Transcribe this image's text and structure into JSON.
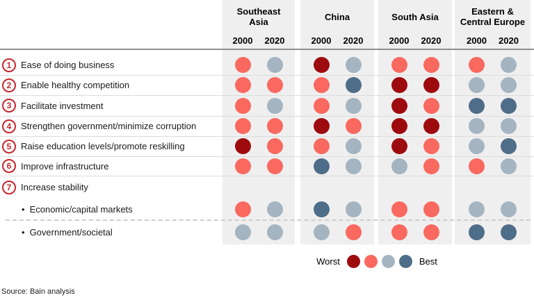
{
  "chart_data": {
    "type": "heatmap",
    "title": "",
    "columns": {
      "regions": [
        {
          "id": "southeast-asia",
          "label": "Southeast\nAsia"
        },
        {
          "id": "china",
          "label": "China"
        },
        {
          "id": "south-asia",
          "label": "South Asia"
        },
        {
          "id": "eastern-central-europe",
          "label": "Eastern &\nCentral Europe"
        }
      ],
      "years": [
        "2000",
        "2020"
      ]
    },
    "scale": {
      "order": [
        "worst",
        "poor",
        "fair",
        "best"
      ],
      "colors": {
        "worst": "#9e0b0f",
        "poor": "#f9695f",
        "fair": "#a5b4c1",
        "best": "#4e6d88"
      }
    },
    "rows": [
      {
        "num": "1",
        "label": "Ease of doing business",
        "values": [
          [
            "poor",
            "fair"
          ],
          [
            "worst",
            "fair"
          ],
          [
            "poor",
            "poor"
          ],
          [
            "poor",
            "fair"
          ]
        ]
      },
      {
        "num": "2",
        "label": "Enable healthy competition",
        "values": [
          [
            "poor",
            "poor"
          ],
          [
            "poor",
            "best"
          ],
          [
            "worst",
            "worst"
          ],
          [
            "fair",
            "fair"
          ]
        ]
      },
      {
        "num": "3",
        "label": "Facilitate investment",
        "values": [
          [
            "poor",
            "fair"
          ],
          [
            "poor",
            "fair"
          ],
          [
            "worst",
            "poor"
          ],
          [
            "best",
            "best"
          ]
        ]
      },
      {
        "num": "4",
        "label": "Strengthen government/minimize corruption",
        "values": [
          [
            "poor",
            "poor"
          ],
          [
            "worst",
            "poor"
          ],
          [
            "worst",
            "worst"
          ],
          [
            "fair",
            "fair"
          ]
        ]
      },
      {
        "num": "5",
        "label": "Raise education levels/promote reskilling",
        "values": [
          [
            "worst",
            "poor"
          ],
          [
            "poor",
            "fair"
          ],
          [
            "worst",
            "poor"
          ],
          [
            "fair",
            "best"
          ]
        ]
      },
      {
        "num": "6",
        "label": "Improve infrastructure",
        "values": [
          [
            "poor",
            "poor"
          ],
          [
            "best",
            "fair"
          ],
          [
            "fair",
            "poor"
          ],
          [
            "poor",
            "fair"
          ]
        ]
      },
      {
        "num": "7",
        "label": "Increase stability",
        "values": null
      },
      {
        "bullet": true,
        "label": "Economic/capital markets",
        "values": [
          [
            "poor",
            "fair"
          ],
          [
            "best",
            "fair"
          ],
          [
            "poor",
            "poor"
          ],
          [
            "fair",
            "fair"
          ]
        ]
      },
      {
        "bullet": true,
        "label": "Government/societal",
        "values": [
          [
            "fair",
            "fair"
          ],
          [
            "fair",
            "poor"
          ],
          [
            "poor",
            "poor"
          ],
          [
            "best",
            "best"
          ]
        ]
      }
    ]
  },
  "legend": {
    "worst_label": "Worst",
    "best_label": "Best"
  },
  "source": "Source: Bain analysis",
  "colors": {
    "column_background": "#efefef",
    "badge_red": "#c9252b"
  }
}
